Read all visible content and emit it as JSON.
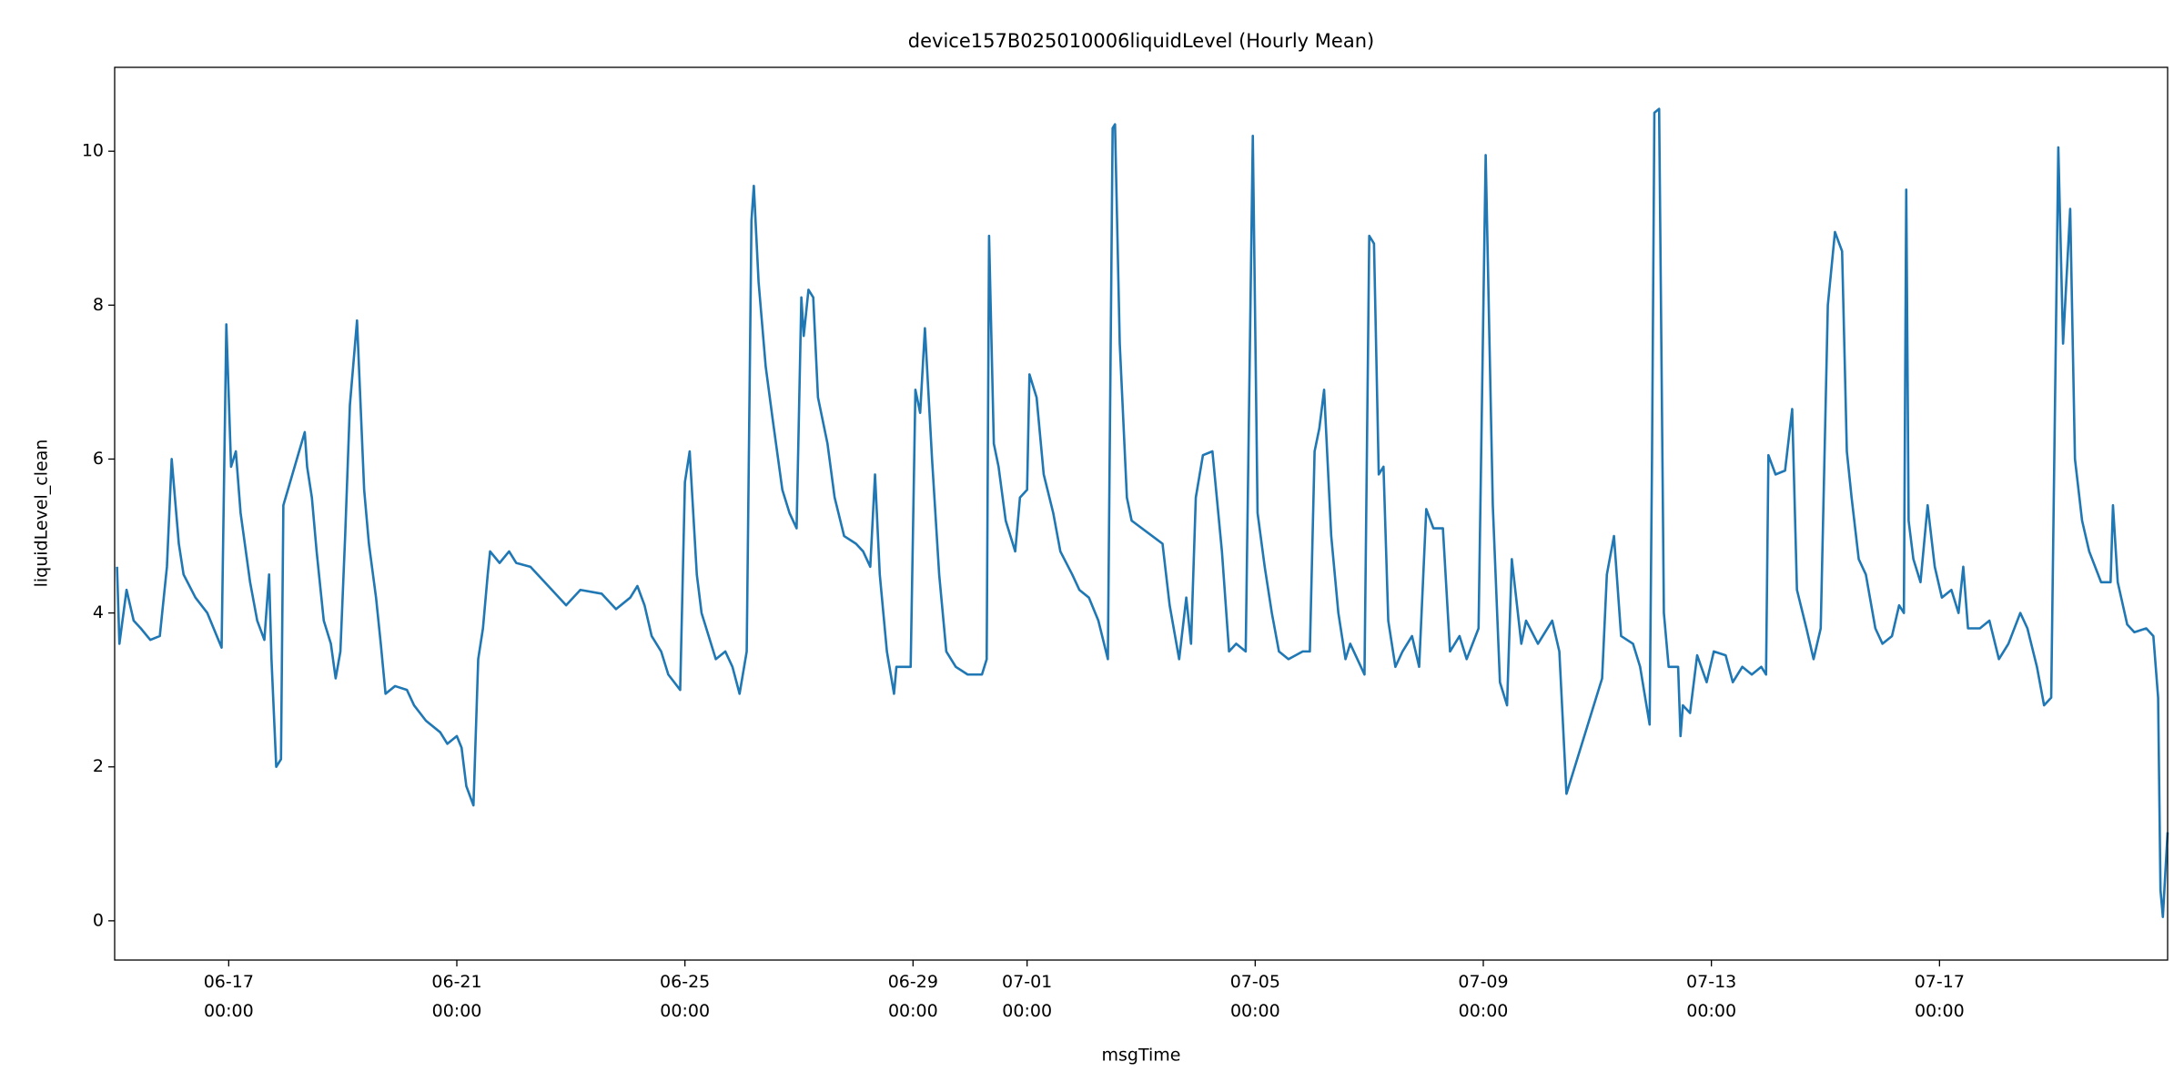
{
  "chart_data": {
    "type": "line",
    "title": "device157B025010006liquidLevel (Hourly Mean)",
    "xlabel": "msgTime",
    "ylabel": "liquidLevel_clean",
    "color": "#1f77b4",
    "xlim": [
      "06-15 00:00",
      "07-21 00:00"
    ],
    "ylim": [
      -0.51,
      11.09
    ],
    "xticks": [
      "06-17 00:00",
      "06-21 00:00",
      "06-25 00:00",
      "06-29 00:00",
      "07-01 00:00",
      "07-05 00:00",
      "07-09 00:00",
      "07-13 00:00",
      "07-17 00:00"
    ],
    "yticks": [
      0,
      2,
      4,
      6,
      8,
      10
    ],
    "x": [
      "06-15 01:00",
      "06-15 02:00",
      "06-15 05:00",
      "06-15 08:00",
      "06-15 11:00",
      "06-15 15:00",
      "06-15 19:00",
      "06-15 22:00",
      "06-16 00:00",
      "06-16 03:00",
      "06-16 05:00",
      "06-16 10:00",
      "06-16 15:00",
      "06-16 19:00",
      "06-16 21:00",
      "06-16 23:00",
      "06-17 01:00",
      "06-17 03:00",
      "06-17 05:00",
      "06-17 09:00",
      "06-17 12:00",
      "06-17 15:00",
      "06-17 17:00",
      "06-17 18:00",
      "06-17 20:00",
      "06-17 22:00",
      "06-17 23:00",
      "06-18 08:00",
      "06-18 09:00",
      "06-18 11:00",
      "06-18 13:00",
      "06-18 16:00",
      "06-18 19:00",
      "06-18 21:00",
      "06-18 23:00",
      "06-19 01:00",
      "06-19 03:00",
      "06-19 06:00",
      "06-19 09:00",
      "06-19 11:00",
      "06-19 14:00",
      "06-19 16:00",
      "06-19 18:00",
      "06-19 22:00",
      "06-20 03:00",
      "06-20 06:00",
      "06-20 11:00",
      "06-20 17:00",
      "06-20 20:00",
      "06-21 00:00",
      "06-21 02:00",
      "06-21 04:00",
      "06-21 07:00",
      "06-21 09:00",
      "06-21 11:00",
      "06-21 13:00",
      "06-21 14:00",
      "06-21 18:00",
      "06-21 22:00",
      "06-22 01:00",
      "06-22 07:00",
      "06-22 13:00",
      "06-22 22:00",
      "06-23 04:00",
      "06-23 13:00",
      "06-23 19:00",
      "06-24 01:00",
      "06-24 04:00",
      "06-24 07:00",
      "06-24 10:00",
      "06-24 14:00",
      "06-24 17:00",
      "06-24 22:00",
      "06-25 00:00",
      "06-25 02:00",
      "06-25 05:00",
      "06-25 07:00",
      "06-25 10:00",
      "06-25 13:00",
      "06-25 17:00",
      "06-25 20:00",
      "06-25 23:00",
      "06-26 02:00",
      "06-26 04:00",
      "06-26 05:00",
      "06-26 07:00",
      "06-26 10:00",
      "06-26 13:00",
      "06-26 17:00",
      "06-26 20:00",
      "06-26 23:00",
      "06-27 01:00",
      "06-27 02:00",
      "06-27 04:00",
      "06-27 06:00",
      "06-27 08:00",
      "06-27 12:00",
      "06-27 15:00",
      "06-27 19:00",
      "06-28 00:00",
      "06-28 03:00",
      "06-28 06:00",
      "06-28 08:00",
      "06-28 10:00",
      "06-28 13:00",
      "06-28 16:00",
      "06-28 17:00",
      "06-28 23:00",
      "06-29 01:00",
      "06-29 03:00",
      "06-29 05:00",
      "06-29 08:00",
      "06-29 11:00",
      "06-29 14:00",
      "06-29 18:00",
      "06-29 23:00",
      "06-30 05:00",
      "06-30 07:00",
      "06-30 08:00",
      "06-30 10:00",
      "06-30 12:00",
      "06-30 15:00",
      "06-30 19:00",
      "06-30 21:00",
      "07-01 00:00",
      "07-01 01:00",
      "07-01 04:00",
      "07-01 07:00",
      "07-01 11:00",
      "07-01 14:00",
      "07-01 19:00",
      "07-01 22:00",
      "07-02 02:00",
      "07-02 06:00",
      "07-02 10:00",
      "07-02 12:00",
      "07-02 13:00",
      "07-02 15:00",
      "07-02 18:00",
      "07-02 20:00",
      "07-03 09:00",
      "07-03 12:00",
      "07-03 16:00",
      "07-03 19:00",
      "07-03 21:00",
      "07-03 23:00",
      "07-04 02:00",
      "07-04 06:00",
      "07-04 10:00",
      "07-04 13:00",
      "07-04 16:00",
      "07-04 20:00",
      "07-04 23:00",
      "07-05 01:00",
      "07-05 04:00",
      "07-05 07:00",
      "07-05 10:00",
      "07-05 14:00",
      "07-05 20:00",
      "07-05 23:00",
      "07-06 01:00",
      "07-06 03:00",
      "07-06 05:00",
      "07-06 08:00",
      "07-06 11:00",
      "07-06 14:00",
      "07-06 16:00",
      "07-06 19:00",
      "07-06 22:00",
      "07-07 00:00",
      "07-07 02:00",
      "07-07 04:00",
      "07-07 06:00",
      "07-07 08:00",
      "07-07 11:00",
      "07-07 14:00",
      "07-07 18:00",
      "07-07 21:00",
      "07-08 00:00",
      "07-08 03:00",
      "07-08 07:00",
      "07-08 10:00",
      "07-08 14:00",
      "07-08 17:00",
      "07-08 22:00",
      "07-09 01:00",
      "07-09 04:00",
      "07-09 07:00",
      "07-09 10:00",
      "07-09 12:00",
      "07-09 16:00",
      "07-09 18:00",
      "07-09 23:00",
      "07-10 05:00",
      "07-10 08:00",
      "07-10 11:00",
      "07-11 02:00",
      "07-11 04:00",
      "07-11 07:00",
      "07-11 10:00",
      "07-11 15:00",
      "07-11 18:00",
      "07-11 22:00",
      "07-11 23:00",
      "07-12 00:00",
      "07-12 02:00",
      "07-12 04:00",
      "07-12 06:00",
      "07-12 10:00",
      "07-12 11:00",
      "07-12 12:00",
      "07-12 15:00",
      "07-12 18:00",
      "07-12 22:00",
      "07-13 01:00",
      "07-13 06:00",
      "07-13 09:00",
      "07-13 13:00",
      "07-13 17:00",
      "07-13 21:00",
      "07-13 23:00",
      "07-14 00:00",
      "07-14 03:00",
      "07-14 07:00",
      "07-14 10:00",
      "07-14 12:00",
      "07-14 16:00",
      "07-14 19:00",
      "07-14 22:00",
      "07-15 01:00",
      "07-15 04:00",
      "07-15 07:00",
      "07-15 09:00",
      "07-15 11:00",
      "07-15 14:00",
      "07-15 17:00",
      "07-15 21:00",
      "07-16 00:00",
      "07-16 04:00",
      "07-16 07:00",
      "07-16 09:00",
      "07-16 10:00",
      "07-16 11:00",
      "07-16 13:00",
      "07-16 16:00",
      "07-16 19:00",
      "07-16 22:00",
      "07-17 01:00",
      "07-17 05:00",
      "07-17 08:00",
      "07-17 10:00",
      "07-17 12:00",
      "07-17 17:00",
      "07-17 21:00",
      "07-18 01:00",
      "07-18 05:00",
      "07-18 10:00",
      "07-18 13:00",
      "07-18 17:00",
      "07-18 20:00",
      "07-18 23:00",
      "07-19 02:00",
      "07-19 04:00",
      "07-19 07:00",
      "07-19 09:00",
      "07-19 12:00",
      "07-19 15:00",
      "07-19 20:00",
      "07-20 00:00",
      "07-20 01:00",
      "07-20 03:00",
      "07-20 07:00",
      "07-20 10:00",
      "07-20 15:00",
      "07-20 18:00",
      "07-20 20:00",
      "07-20 21:00",
      "07-20 22:00",
      "07-21 00:00"
    ],
    "values": [
      4.6,
      3.6,
      4.3,
      3.9,
      3.8,
      3.65,
      3.7,
      4.6,
      6.0,
      4.9,
      4.5,
      4.2,
      4.0,
      3.7,
      3.55,
      7.75,
      5.9,
      6.1,
      5.3,
      4.4,
      3.9,
      3.65,
      4.5,
      3.4,
      2.0,
      2.1,
      5.4,
      6.35,
      5.9,
      5.5,
      4.8,
      3.9,
      3.6,
      3.15,
      3.5,
      5.0,
      6.7,
      7.8,
      5.6,
      4.9,
      4.2,
      3.6,
      2.95,
      3.05,
      3.0,
      2.8,
      2.6,
      2.45,
      2.3,
      2.4,
      2.25,
      1.75,
      1.5,
      3.4,
      3.8,
      4.5,
      4.8,
      4.65,
      4.8,
      4.65,
      4.6,
      4.4,
      4.1,
      4.3,
      4.25,
      4.05,
      4.2,
      4.35,
      4.1,
      3.7,
      3.5,
      3.2,
      3.0,
      5.7,
      6.1,
      4.5,
      4.0,
      3.7,
      3.4,
      3.5,
      3.3,
      2.95,
      3.5,
      9.1,
      9.55,
      8.3,
      7.2,
      6.5,
      5.6,
      5.3,
      5.1,
      8.1,
      7.6,
      8.2,
      8.1,
      6.8,
      6.2,
      5.5,
      5.0,
      4.9,
      4.8,
      4.6,
      5.8,
      4.5,
      3.5,
      2.95,
      3.3,
      3.3,
      6.9,
      6.6,
      7.7,
      6.0,
      4.5,
      3.5,
      3.3,
      3.2,
      3.2,
      3.4,
      8.9,
      6.2,
      5.9,
      5.2,
      4.8,
      5.5,
      5.6,
      7.1,
      6.8,
      5.8,
      5.3,
      4.8,
      4.5,
      4.3,
      4.2,
      3.9,
      3.4,
      10.3,
      10.35,
      7.5,
      5.5,
      5.2,
      4.9,
      4.1,
      3.4,
      4.2,
      3.6,
      5.5,
      6.05,
      6.1,
      4.8,
      3.5,
      3.6,
      3.5,
      10.2,
      5.3,
      4.6,
      4.0,
      3.5,
      3.4,
      3.5,
      3.5,
      6.1,
      6.4,
      6.9,
      5.0,
      4.0,
      3.4,
      3.6,
      3.4,
      3.2,
      8.9,
      8.8,
      5.8,
      5.9,
      3.9,
      3.3,
      3.5,
      3.7,
      3.3,
      5.35,
      5.1,
      5.1,
      3.5,
      3.7,
      3.4,
      3.8,
      9.95,
      5.4,
      3.1,
      2.8,
      4.7,
      3.6,
      3.9,
      3.6,
      3.9,
      3.5,
      1.65,
      3.15,
      4.5,
      5.0,
      3.7,
      3.6,
      3.3,
      2.55,
      6.0,
      10.5,
      10.55,
      4.0,
      3.3,
      3.3,
      2.4,
      2.8,
      2.7,
      3.45,
      3.1,
      3.5,
      3.45,
      3.1,
      3.3,
      3.2,
      3.3,
      3.2,
      6.05,
      5.8,
      5.85,
      6.65,
      4.3,
      3.8,
      3.4,
      3.8,
      8.0,
      8.95,
      8.7,
      6.1,
      5.5,
      4.7,
      4.5,
      3.8,
      3.6,
      3.7,
      4.1,
      4.0,
      9.5,
      5.2,
      4.7,
      4.4,
      5.4,
      4.6,
      4.2,
      4.3,
      4.0,
      4.6,
      3.8,
      3.8,
      3.9,
      3.4,
      3.6,
      4.0,
      3.8,
      3.3,
      2.8,
      2.9,
      10.05,
      7.5,
      9.25,
      6.0,
      5.2,
      4.8,
      4.4,
      4.4,
      5.4,
      4.4,
      3.85,
      3.75,
      3.8,
      3.7,
      2.9,
      0.4,
      0.05,
      1.15
    ]
  }
}
